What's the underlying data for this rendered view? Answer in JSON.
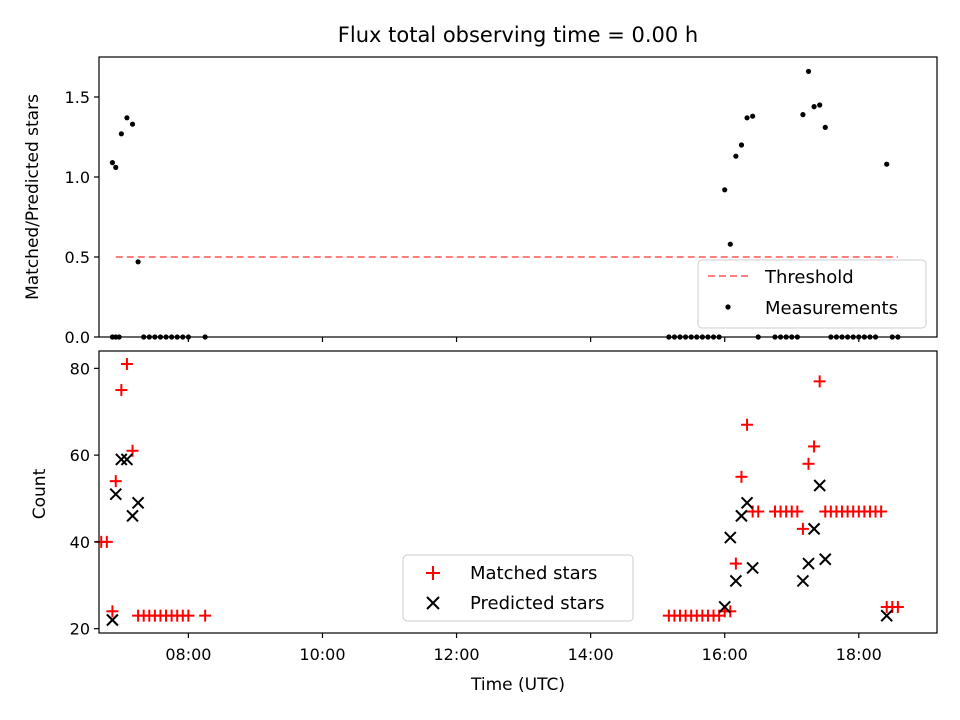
{
  "chart_data": [
    {
      "type": "scatter",
      "title": "Flux total observing time = 0.00 h",
      "xlabel": "",
      "ylabel": "Matched/Predicted stars",
      "xlim": [
        "06:40",
        "19:10"
      ],
      "ylim": [
        0,
        1.75
      ],
      "yticks": [
        "0.0",
        "0.5",
        "1.0",
        "1.5"
      ],
      "legend_position": "lower-right",
      "series": [
        {
          "name": "Threshold",
          "kind": "dashed-line",
          "color": "#ff7f7f",
          "points": [
            [
              "06:55",
              0.5
            ],
            [
              "18:35",
              0.5
            ]
          ]
        },
        {
          "name": "Measurements",
          "kind": "dots",
          "color": "#000000",
          "points": [
            [
              "06:55",
              0
            ],
            [
              "06:58",
              0
            ],
            [
              "06:52",
              0
            ],
            [
              "06:52",
              1.09
            ],
            [
              "06:55",
              1.06
            ],
            [
              "07:00",
              1.27
            ],
            [
              "07:05",
              1.37
            ],
            [
              "07:10",
              1.33
            ],
            [
              "07:15",
              0.47
            ],
            [
              "07:20",
              0
            ],
            [
              "07:25",
              0
            ],
            [
              "07:30",
              0
            ],
            [
              "07:35",
              0
            ],
            [
              "07:40",
              0
            ],
            [
              "07:45",
              0
            ],
            [
              "07:50",
              0
            ],
            [
              "07:55",
              0
            ],
            [
              "08:00",
              0
            ],
            [
              "08:15",
              0
            ],
            [
              "15:10",
              0
            ],
            [
              "15:15",
              0
            ],
            [
              "15:20",
              0
            ],
            [
              "15:25",
              0
            ],
            [
              "15:30",
              0
            ],
            [
              "15:35",
              0
            ],
            [
              "15:40",
              0
            ],
            [
              "15:45",
              0
            ],
            [
              "15:50",
              0
            ],
            [
              "15:55",
              0
            ],
            [
              "16:00",
              0.92
            ],
            [
              "16:05",
              0.58
            ],
            [
              "16:10",
              1.13
            ],
            [
              "16:15",
              1.2
            ],
            [
              "16:20",
              1.37
            ],
            [
              "16:25",
              1.38
            ],
            [
              "16:30",
              0
            ],
            [
              "16:45",
              0
            ],
            [
              "16:50",
              0
            ],
            [
              "16:55",
              0
            ],
            [
              "17:00",
              0
            ],
            [
              "17:05",
              0
            ],
            [
              "17:10",
              1.39
            ],
            [
              "17:15",
              1.66
            ],
            [
              "17:20",
              1.44
            ],
            [
              "17:25",
              1.45
            ],
            [
              "17:30",
              1.31
            ],
            [
              "17:35",
              0
            ],
            [
              "17:40",
              0
            ],
            [
              "17:45",
              0
            ],
            [
              "17:50",
              0
            ],
            [
              "17:55",
              0
            ],
            [
              "18:00",
              0
            ],
            [
              "18:05",
              0
            ],
            [
              "18:10",
              0
            ],
            [
              "18:15",
              0
            ],
            [
              "18:25",
              1.08
            ],
            [
              "18:30",
              0
            ],
            [
              "18:35",
              0
            ]
          ]
        }
      ]
    },
    {
      "type": "scatter",
      "title": "",
      "xlabel": "Time (UTC)",
      "ylabel": "Count",
      "xlim": [
        "06:40",
        "19:10"
      ],
      "ylim": [
        19,
        84
      ],
      "xticks": [
        "08:00",
        "10:00",
        "12:00",
        "14:00",
        "16:00",
        "18:00"
      ],
      "yticks": [
        "20",
        "40",
        "60",
        "80"
      ],
      "legend_position": "lower-center",
      "series": [
        {
          "name": "Matched stars",
          "marker": "plus",
          "color": "#ff0000",
          "points": [
            [
              "06:42",
              40
            ],
            [
              "06:47",
              40
            ],
            [
              "06:52",
              24
            ],
            [
              "06:55",
              54
            ],
            [
              "07:00",
              75
            ],
            [
              "07:05",
              81
            ],
            [
              "07:10",
              61
            ],
            [
              "07:15",
              23
            ],
            [
              "07:20",
              23
            ],
            [
              "07:25",
              23
            ],
            [
              "07:30",
              23
            ],
            [
              "07:35",
              23
            ],
            [
              "07:40",
              23
            ],
            [
              "07:45",
              23
            ],
            [
              "07:50",
              23
            ],
            [
              "07:55",
              23
            ],
            [
              "08:00",
              23
            ],
            [
              "08:15",
              23
            ],
            [
              "15:10",
              23
            ],
            [
              "15:15",
              23
            ],
            [
              "15:20",
              23
            ],
            [
              "15:25",
              23
            ],
            [
              "15:30",
              23
            ],
            [
              "15:35",
              23
            ],
            [
              "15:40",
              23
            ],
            [
              "15:45",
              23
            ],
            [
              "15:50",
              23
            ],
            [
              "15:55",
              23
            ],
            [
              "16:00",
              24
            ],
            [
              "16:05",
              24
            ],
            [
              "16:10",
              35
            ],
            [
              "16:15",
              55
            ],
            [
              "16:20",
              67
            ],
            [
              "16:25",
              47
            ],
            [
              "16:30",
              47
            ],
            [
              "16:45",
              47
            ],
            [
              "16:50",
              47
            ],
            [
              "16:55",
              47
            ],
            [
              "17:00",
              47
            ],
            [
              "17:05",
              47
            ],
            [
              "17:10",
              43
            ],
            [
              "17:15",
              58
            ],
            [
              "17:20",
              62
            ],
            [
              "17:25",
              77
            ],
            [
              "17:30",
              47
            ],
            [
              "17:35",
              47
            ],
            [
              "17:40",
              47
            ],
            [
              "17:45",
              47
            ],
            [
              "17:50",
              47
            ],
            [
              "17:55",
              47
            ],
            [
              "18:00",
              47
            ],
            [
              "18:05",
              47
            ],
            [
              "18:10",
              47
            ],
            [
              "18:15",
              47
            ],
            [
              "18:20",
              47
            ],
            [
              "18:25",
              25
            ],
            [
              "18:30",
              25
            ],
            [
              "18:35",
              25
            ]
          ]
        },
        {
          "name": "Predicted stars",
          "marker": "x",
          "color": "#000000",
          "points": [
            [
              "06:52",
              22
            ],
            [
              "06:55",
              51
            ],
            [
              "07:00",
              59
            ],
            [
              "07:05",
              59
            ],
            [
              "07:10",
              46
            ],
            [
              "07:15",
              49
            ],
            [
              "16:00",
              25
            ],
            [
              "16:05",
              41
            ],
            [
              "16:10",
              31
            ],
            [
              "16:15",
              46
            ],
            [
              "16:20",
              49
            ],
            [
              "16:25",
              34
            ],
            [
              "17:10",
              31
            ],
            [
              "17:15",
              35
            ],
            [
              "17:20",
              43
            ],
            [
              "17:25",
              53
            ],
            [
              "17:30",
              36
            ],
            [
              "18:25",
              23
            ]
          ]
        }
      ]
    }
  ]
}
